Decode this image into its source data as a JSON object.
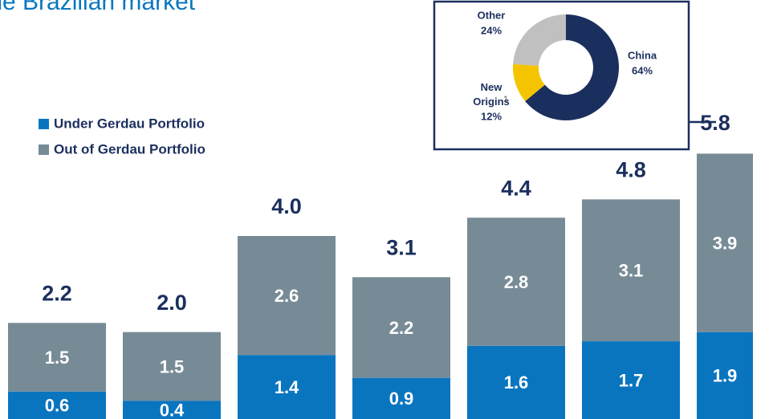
{
  "chart_data": [
    {
      "type": "bar",
      "stacked": true,
      "title": "the Brazilian market",
      "ylim": [
        0,
        9
      ],
      "series": [
        {
          "name": "Under Gerdau Portfolio",
          "color": "#0a75bf",
          "values": [
            0.6,
            0.4,
            1.4,
            0.9,
            1.6,
            1.7,
            1.9
          ]
        },
        {
          "name": "Out of Gerdau Portfolio",
          "color": "#778b97",
          "values": [
            1.5,
            1.5,
            2.6,
            2.2,
            2.8,
            3.1,
            3.9
          ]
        }
      ],
      "totals": {
        "values": [
          2.2,
          2.0,
          4.0,
          3.1,
          4.4,
          4.8,
          5.8
        ],
        "value_labels": [
          "2.2",
          "2.0",
          "4.0",
          "3.1",
          "4.4",
          "4.8",
          "5.8"
        ]
      }
    },
    {
      "type": "pie",
      "donut": true,
      "categories": [
        "China",
        "New Origins",
        "Other"
      ],
      "footnotes": [
        null,
        "1",
        null
      ],
      "values": [
        64,
        12,
        24
      ],
      "value_labels": [
        "64%",
        "12%",
        "24%"
      ],
      "colors": [
        "#1b2f5e",
        "#f5c400",
        "#c0c0c0"
      ]
    }
  ]
}
